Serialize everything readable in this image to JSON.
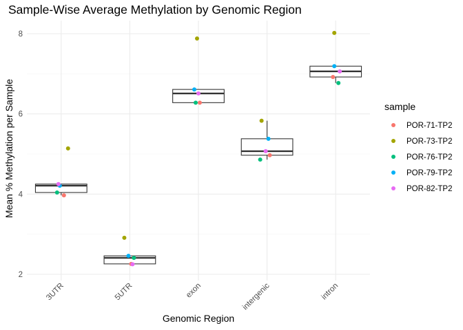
{
  "chart_data": {
    "type": "box",
    "title": "Sample-Wise Average Methylation by Genomic Region",
    "xlabel": "Genomic Region",
    "ylabel": "Mean % Methylation per Sample",
    "categories": [
      "3UTR",
      "5UTR",
      "exon",
      "intergenic",
      "intron"
    ],
    "ylim": [
      1.85,
      8.25
    ],
    "yticks": [
      2,
      4,
      6,
      8
    ],
    "grid": true,
    "legend": {
      "title": "sample",
      "position": "right"
    },
    "series": [
      {
        "name": "POR-71-TP2",
        "color": "#F8766D",
        "values": [
          3.97,
          2.26,
          6.28,
          4.97,
          6.92
        ]
      },
      {
        "name": "POR-73-TP2",
        "color": "#A3A500",
        "values": [
          5.14,
          2.91,
          7.88,
          5.83,
          8.02
        ]
      },
      {
        "name": "POR-76-TP2",
        "color": "#00BF7D",
        "values": [
          4.04,
          2.41,
          6.28,
          4.86,
          6.77
        ]
      },
      {
        "name": "POR-79-TP2",
        "color": "#00B0F6",
        "values": [
          4.21,
          2.46,
          6.61,
          5.38,
          7.19
        ]
      },
      {
        "name": "POR-82-TP2",
        "color": "#E76BF3",
        "values": [
          4.25,
          2.25,
          6.51,
          5.07,
          7.06
        ]
      }
    ],
    "jitter": [
      [
        0.1,
        0.25,
        -0.15,
        -0.05,
        -0.1
      ],
      [
        0.05,
        -0.2,
        0.15,
        -0.05,
        0.1
      ],
      [
        0.05,
        -0.05,
        -0.1,
        -0.15,
        0.0
      ],
      [
        0.1,
        -0.2,
        -0.25,
        0.05,
        -0.05
      ],
      [
        -0.1,
        -0.05,
        0.1,
        -0.05,
        0.15
      ]
    ]
  }
}
